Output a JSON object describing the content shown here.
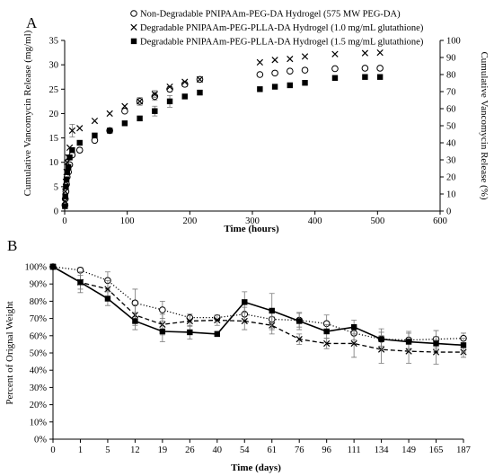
{
  "panels": [
    {
      "panel_label": "A",
      "legend": [
        {
          "marker": "open-circle",
          "label": "Non-Degradable PNIPAAm-PEG-DA Hydrogel (575 MW PEG-DA)"
        },
        {
          "marker": "cross",
          "label": "Degradable PNIPAAm-PEG-PLLA-DA Hydrogel (1.0 mg/mL glutathione)"
        },
        {
          "marker": "filled-square",
          "label": "Degradable PNIPAAm-PEG-PLLA-DA Hydrogel (1.5 mg/mL glutathione)"
        }
      ]
    },
    {
      "panel_label": "B"
    }
  ],
  "chart_data": [
    {
      "type": "scatter",
      "xlabel": "Time (hours)",
      "ylabel": "Cumulative Vancomycin Release (mg/ml)",
      "y2label": "Cumulative Vancomycin Release (%)",
      "xlim": [
        0,
        600
      ],
      "ylim": [
        0,
        35
      ],
      "y2lim": [
        0,
        100
      ],
      "xticks": [
        0,
        100,
        200,
        300,
        400,
        500,
        600
      ],
      "yticks": [
        0,
        5,
        10,
        15,
        20,
        25,
        30,
        35
      ],
      "y2ticks": [
        0,
        10,
        20,
        30,
        40,
        50,
        60,
        70,
        80,
        90,
        100
      ],
      "grid": false,
      "legend_position": "top-right",
      "series": [
        {
          "name": "Non-Degradable PNIPAAm-PEG-DA Hydrogel (575 MW PEG-DA)",
          "marker": "open-circle",
          "x": [
            0.5,
            1,
            2,
            3,
            4,
            6,
            8,
            12,
            24,
            48,
            72,
            96,
            120,
            144,
            168,
            192,
            216,
            312,
            336,
            360,
            384,
            432,
            480,
            504
          ],
          "y": [
            1.2,
            2.5,
            4.0,
            5.5,
            7.0,
            8.0,
            9.5,
            11.5,
            12.5,
            14.5,
            16.5,
            20.5,
            22.5,
            23.5,
            25.0,
            26.0,
            27.0,
            28.0,
            28.3,
            28.7,
            28.9,
            29.2,
            29.3,
            29.3
          ],
          "err": [
            0,
            0,
            0,
            0,
            0,
            0,
            0,
            0,
            0.5,
            0,
            0,
            0,
            0.8,
            0.8,
            0.5,
            0.5,
            0,
            0,
            0,
            0,
            0,
            0,
            0,
            0
          ]
        },
        {
          "name": "Degradable PNIPAAm-PEG-PLLA-DA Hydrogel (1.0 mg/mL glutathione)",
          "marker": "cross",
          "x": [
            0.5,
            1,
            2,
            3,
            4,
            6,
            8,
            12,
            24,
            48,
            72,
            96,
            120,
            144,
            168,
            192,
            216,
            312,
            336,
            360,
            384,
            432,
            480,
            504
          ],
          "y": [
            2.0,
            4.0,
            6.0,
            8.0,
            10.0,
            11.0,
            13.0,
            16.5,
            17.0,
            18.5,
            20.0,
            21.5,
            22.5,
            24.0,
            25.5,
            26.5,
            27.0,
            30.5,
            31.0,
            31.2,
            31.7,
            32.2,
            32.4,
            32.5
          ],
          "err": [
            0,
            0,
            0,
            0,
            0,
            0,
            0,
            1.3,
            0,
            0,
            0,
            0,
            0,
            0.7,
            0,
            0,
            0,
            0,
            0,
            0,
            0,
            0,
            0,
            0
          ]
        },
        {
          "name": "Degradable PNIPAAm-PEG-PLLA-DA Hydrogel (1.5 mg/mL glutathione)",
          "marker": "filled-square",
          "x": [
            0.5,
            1,
            2,
            3,
            4,
            6,
            8,
            12,
            24,
            48,
            72,
            96,
            120,
            144,
            168,
            192,
            216,
            312,
            336,
            360,
            384,
            432,
            480,
            504
          ],
          "y": [
            1.0,
            3.0,
            5.0,
            6.5,
            8.0,
            9.0,
            11.0,
            12.5,
            14.0,
            15.5,
            16.5,
            18.0,
            19.0,
            20.5,
            22.5,
            23.5,
            24.3,
            25.0,
            25.5,
            25.8,
            26.3,
            27.3,
            27.5,
            27.5
          ],
          "err": [
            0,
            0,
            0,
            0,
            0,
            0,
            0,
            0,
            0,
            0,
            0,
            0,
            0,
            1.0,
            1.2,
            0,
            0,
            0,
            0,
            0,
            0,
            0,
            0,
            0
          ]
        }
      ]
    },
    {
      "type": "line",
      "xlabel": "Time (days)",
      "ylabel": "Percent of Orignal Weight",
      "categories": [
        "0",
        "1",
        "5",
        "12",
        "19",
        "26",
        "40",
        "54",
        "61",
        "76",
        "96",
        "111",
        "134",
        "149",
        "165",
        "187"
      ],
      "ylim": [
        0,
        100
      ],
      "yticks": [
        "0%",
        "10%",
        "20%",
        "30%",
        "40%",
        "50%",
        "60%",
        "70%",
        "80%",
        "90%",
        "100%"
      ],
      "grid": false,
      "series": [
        {
          "name": "Non-Degradable PNIPAAm-PEG-DA Hydrogel (575 MW PEG-DA)",
          "marker": "open-circle",
          "line": "dotted",
          "values": [
            100,
            98,
            92,
            79,
            75,
            70.5,
            70.5,
            72.5,
            69.5,
            69,
            67,
            61.5,
            58,
            57.5,
            58,
            58.5
          ],
          "err": [
            0,
            1.5,
            5,
            8,
            5,
            2,
            1.5,
            4,
            6,
            4,
            5,
            4,
            4,
            5,
            5,
            3
          ]
        },
        {
          "name": "Degradable PNIPAAm-PEG-PLLA-DA Hydrogel (1.0 mg/mL glutathione)",
          "marker": "cross",
          "line": "dashed",
          "values": [
            100,
            91,
            87,
            72,
            66.5,
            68.5,
            69,
            68.5,
            66,
            58,
            55.5,
            55.5,
            52,
            51,
            50.5,
            50.5
          ],
          "err": [
            0,
            6,
            5,
            6,
            6,
            3,
            3,
            5,
            5,
            3,
            3,
            8,
            8,
            7,
            7,
            3
          ]
        },
        {
          "name": "Degradable PNIPAAm-PEG-PLLA-DA Hydrogel (1.5 mg/mL glutathione)",
          "marker": "filled-square",
          "line": "solid",
          "values": [
            100,
            91,
            81.5,
            68.5,
            62.5,
            62,
            61,
            79.5,
            74.5,
            68.5,
            62.5,
            65,
            58,
            56.5,
            55.5,
            54.5
          ],
          "err": [
            0,
            4,
            4,
            5,
            6,
            4,
            1.5,
            6,
            10,
            5,
            4,
            4,
            6,
            5,
            4,
            4
          ]
        }
      ]
    }
  ]
}
